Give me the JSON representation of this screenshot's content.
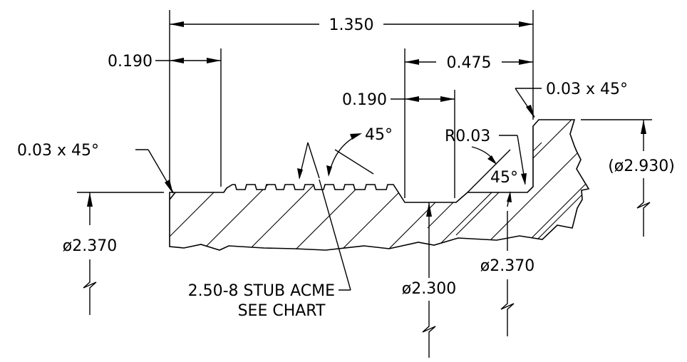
{
  "drawing": {
    "overall_length": "1.350",
    "left_land_width": "0.190",
    "groove_width": "0.190",
    "right_shoulder_to_groove": "0.475",
    "chamfer_right": "0.03 x 45°",
    "chamfer_left": "0.03 x 45°",
    "thread_flank_angle": "45°",
    "fillet_radius": "R0.03",
    "shoulder_angle": "45°",
    "shoulder_dia": "(ø2.930)",
    "major_dia_left": "ø2.370",
    "major_dia_right": "ø2.370",
    "groove_dia": "ø2.300",
    "thread_callout_line1": "2.50-8 STUB ACME",
    "thread_callout_line2": "SEE CHART"
  }
}
